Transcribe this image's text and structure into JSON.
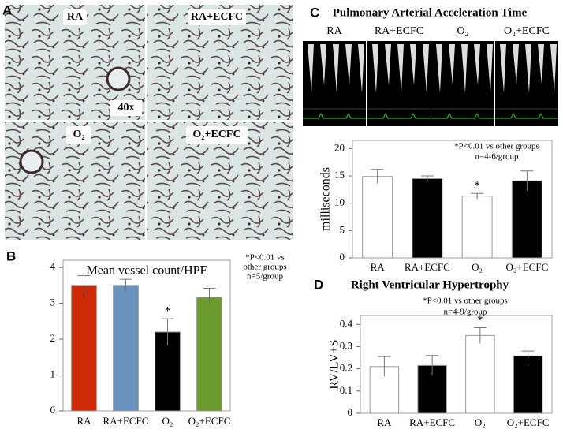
{
  "panel_labels": [
    "A",
    "B",
    "C",
    "D"
  ],
  "micrographs": {
    "labels": [
      "RA",
      "RA+ECFC",
      "O₂",
      "O₂+ECFC"
    ],
    "magnification": "40x"
  },
  "doppler": {
    "title": "Pulmonary Arterial Acceleration Time",
    "labels": [
      "RA",
      "RA+ECFC",
      "O₂",
      "O₂+ECFC"
    ]
  },
  "chart_data": [
    {
      "type": "bar",
      "title": "Mean vessel count/HPF",
      "categories": [
        "RA",
        "RA+ECFC",
        "O₂",
        "O₂+ECFC"
      ],
      "values": [
        3.5,
        3.5,
        2.2,
        3.17
      ],
      "errors": [
        0.27,
        0.17,
        0.37,
        0.25
      ],
      "colors": [
        "#cc2a06",
        "#6a93c0",
        "#000000",
        "#6b9a2e"
      ],
      "markers": [
        null,
        null,
        "*",
        null
      ],
      "ylim": [
        0,
        4.2
      ],
      "yticks": [
        0,
        1,
        2,
        3,
        4
      ],
      "note": [
        "*P<0.01 vs",
        "other groups",
        "n=5/group"
      ]
    },
    {
      "type": "bar",
      "ylabel": "milliseconds",
      "categories": [
        "RA",
        "RA+ECFC",
        "O₂",
        "O₂+ECFC"
      ],
      "values": [
        14.9,
        14.5,
        11.3,
        14.1
      ],
      "errors": [
        1.3,
        0.5,
        0.5,
        1.8
      ],
      "colors": [
        "#ffffff",
        "#000000",
        "#ffffff",
        "#000000"
      ],
      "markers": [
        null,
        null,
        "*",
        null
      ],
      "ylim": [
        0,
        21.5
      ],
      "yticks": [
        0,
        5,
        10,
        15,
        20
      ],
      "note": [
        "*P<0.01 vs other groups",
        "n=4-6/group"
      ]
    },
    {
      "type": "bar",
      "title": "Right Ventricular Hypertrophy",
      "ylabel": "RV/LV+S",
      "categories": [
        "RA",
        "RA+ECFC",
        "O₂",
        "O₂+ECFC"
      ],
      "values": [
        0.21,
        0.215,
        0.35,
        0.258
      ],
      "errors": [
        0.045,
        0.045,
        0.035,
        0.022
      ],
      "colors": [
        "#ffffff",
        "#000000",
        "#ffffff",
        "#000000"
      ],
      "markers": [
        null,
        null,
        "*",
        null
      ],
      "ylim": [
        0,
        0.44
      ],
      "yticks": [
        0,
        0.1,
        0.2,
        0.3,
        0.4
      ],
      "note": [
        "*P<0.01 vs other groups",
        "n=4-9/group"
      ]
    }
  ]
}
